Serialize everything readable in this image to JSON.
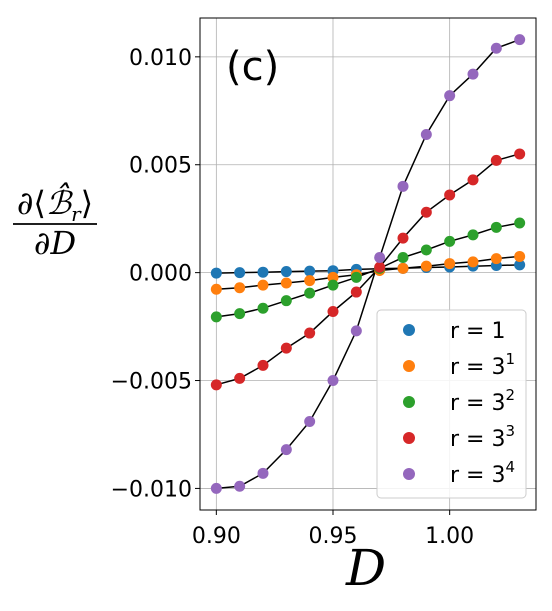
{
  "chart_data": {
    "type": "line",
    "panel_label": "(c)",
    "xlabel": "D",
    "ylabel": "∂⟨ℬ̂ᵣ⟩ / ∂D",
    "xlim": [
      0.893,
      1.037
    ],
    "ylim": [
      -0.011,
      0.0118
    ],
    "xticks": [
      0.9,
      0.95,
      1.0
    ],
    "xtick_labels": [
      "0.90",
      "0.95",
      "1.00"
    ],
    "yticks": [
      -0.01,
      -0.005,
      0.0,
      0.005,
      0.01
    ],
    "ytick_labels": [
      "−0.010",
      "−0.005",
      "0.000",
      "0.005",
      "0.010"
    ],
    "grid": true,
    "legend_position": "lower-right",
    "x": [
      0.9,
      0.91,
      0.92,
      0.93,
      0.94,
      0.95,
      0.96,
      0.97,
      0.98,
      0.99,
      1.0,
      1.01,
      1.02,
      1.03
    ],
    "series": [
      {
        "name": "r = 1",
        "label_base": "r = 1",
        "label_exp": "",
        "color": "#1f77b4",
        "values": [
          -2e-05,
          0.0,
          2e-05,
          5e-05,
          7e-05,
          9e-05,
          0.00015,
          0.00018,
          0.0002,
          0.00024,
          0.00026,
          0.0003,
          0.00033,
          0.00036
        ]
      },
      {
        "name": "r = 3^1",
        "label_base": "r = 3",
        "label_exp": "1",
        "color": "#ff7f0e",
        "values": [
          -0.00077,
          -0.0007,
          -0.00058,
          -0.00048,
          -0.00037,
          -0.00022,
          -0.0001,
          0.0001,
          0.0002,
          0.0003,
          0.00042,
          0.0005,
          0.00065,
          0.00075
        ]
      },
      {
        "name": "r = 3^2",
        "label_base": "r = 3",
        "label_exp": "2",
        "color": "#2ca02c",
        "values": [
          -0.00205,
          -0.0019,
          -0.00165,
          -0.0013,
          -0.00095,
          -0.00058,
          -0.00022,
          0.0002,
          0.0007,
          0.00105,
          0.00145,
          0.00175,
          0.0021,
          0.0023
        ]
      },
      {
        "name": "r = 3^3",
        "label_base": "r = 3",
        "label_exp": "3",
        "color": "#d62728",
        "values": [
          -0.0052,
          -0.0049,
          -0.0043,
          -0.0035,
          -0.0028,
          -0.0018,
          -0.0009,
          0.00025,
          0.0016,
          0.0028,
          0.0036,
          0.0043,
          0.0052,
          0.0055
        ]
      },
      {
        "name": "r = 3^4",
        "label_base": "r = 3",
        "label_exp": "4",
        "color": "#9467bd",
        "values": [
          -0.01,
          -0.0099,
          -0.0093,
          -0.0082,
          -0.0069,
          -0.005,
          -0.0027,
          0.0007,
          0.004,
          0.0064,
          0.0082,
          0.0092,
          0.0104,
          0.0108
        ]
      }
    ]
  }
}
